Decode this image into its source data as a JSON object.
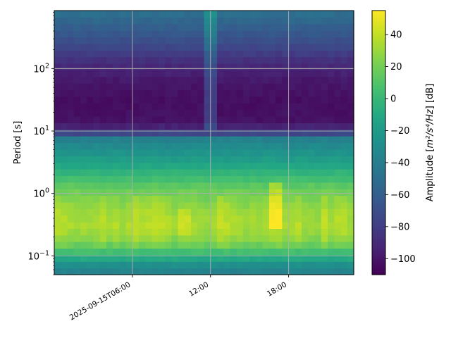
{
  "chart_data": {
    "type": "heatmap",
    "title": "",
    "xlabel": "",
    "ylabel": "Period [s]",
    "x_ticks": [
      "2025-09-15T06:00",
      "12:00",
      "18:00"
    ],
    "x_tick_hours": [
      6,
      12,
      18
    ],
    "x_range_hours": [
      0.0,
      23.0
    ],
    "y_scale": "log",
    "y_range": [
      0.05,
      850
    ],
    "y_ticks": [
      {
        "value": 0.1,
        "base": "10",
        "exp": "−1"
      },
      {
        "value": 1,
        "base": "10",
        "exp": "0"
      },
      {
        "value": 10,
        "base": "10",
        "exp": "1"
      },
      {
        "value": 100,
        "base": "10",
        "exp": "2"
      }
    ],
    "grid": true,
    "colormap": "viridis",
    "colorbar": {
      "label_prefix": "Amplitude [",
      "label_math": "m²/s⁴/Hz",
      "label_suffix": "] [dB]",
      "range": [
        -110,
        55
      ],
      "ticks": [
        "40",
        "20",
        "0",
        "−20",
        "−40",
        "−60",
        "−80",
        "−100"
      ],
      "tick_values": [
        40,
        20,
        0,
        -20,
        -40,
        -60,
        -80,
        -100
      ]
    },
    "time_bins_hours": 0.5,
    "amplitude_profile_db": [
      {
        "period": 850,
        "db": -48
      },
      {
        "period": 500,
        "db": -58
      },
      {
        "period": 250,
        "db": -72
      },
      {
        "period": 120,
        "db": -90
      },
      {
        "period": 60,
        "db": -100
      },
      {
        "period": 30,
        "db": -104
      },
      {
        "period": 15,
        "db": -102
      },
      {
        "period": 10,
        "db": -88
      },
      {
        "period": 8,
        "db": -40
      },
      {
        "period": 5,
        "db": -28
      },
      {
        "period": 3,
        "db": -14
      },
      {
        "period": 2,
        "db": 0
      },
      {
        "period": 1.3,
        "db": 14
      },
      {
        "period": 0.8,
        "db": 26
      },
      {
        "period": 0.5,
        "db": 33
      },
      {
        "period": 0.3,
        "db": 36
      },
      {
        "period": 0.2,
        "db": 30
      },
      {
        "period": 0.15,
        "db": 20
      },
      {
        "period": 0.1,
        "db": -4
      },
      {
        "period": 0.07,
        "db": -30
      },
      {
        "period": 0.05,
        "db": -40
      }
    ],
    "features": [
      {
        "hour": 11.9,
        "period_range": [
          10,
          850
        ],
        "delta_db": 22
      },
      {
        "hour": 16.9,
        "period_range": [
          0.3,
          1.5
        ],
        "delta_db": 18
      },
      {
        "hour": 10.0,
        "period_range": [
          0.2,
          0.6
        ],
        "delta_db": 8
      }
    ]
  }
}
